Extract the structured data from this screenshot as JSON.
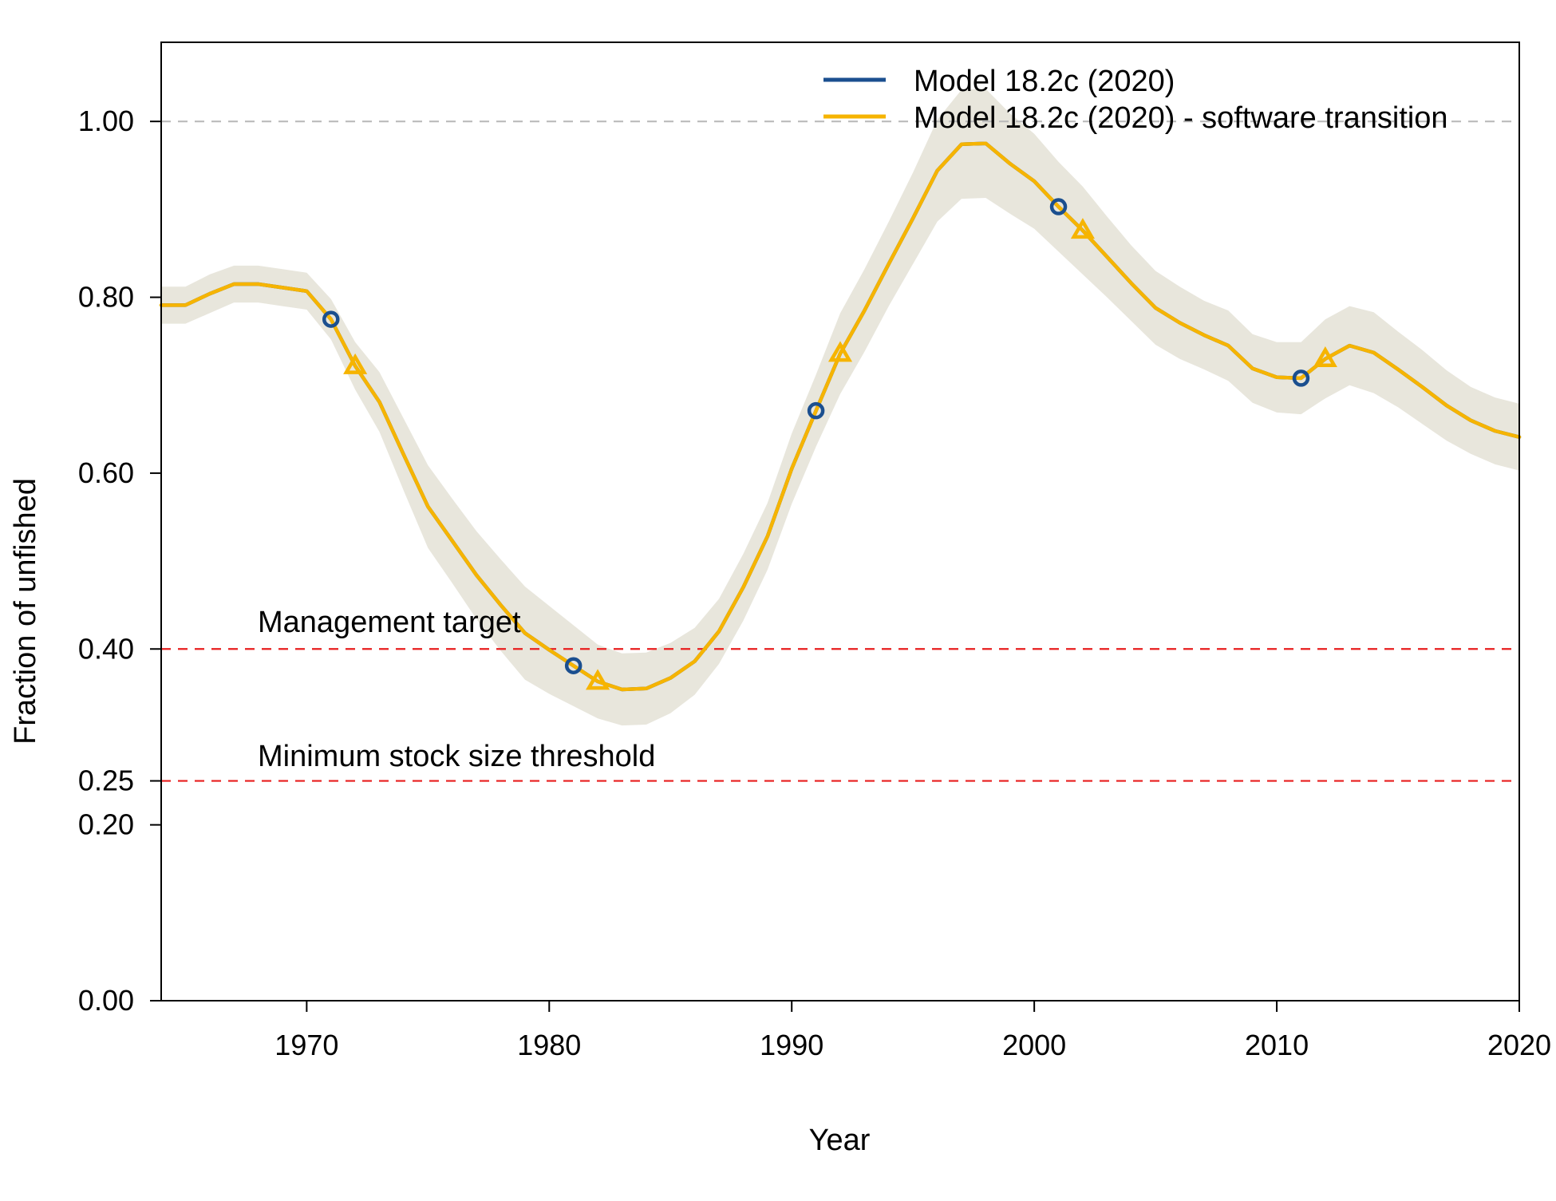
{
  "chart_data": {
    "type": "line",
    "title": "",
    "xlabel": "Year",
    "ylabel": "Fraction of unfished",
    "xlim": [
      1964,
      2020
    ],
    "ylim": [
      0,
      1.09
    ],
    "x_ticks": [
      1970,
      1980,
      1990,
      2000,
      2010,
      2020
    ],
    "x_tick_labels": [
      "1970",
      "1980",
      "1990",
      "2000",
      "2010",
      "2020"
    ],
    "y_ticks": [
      0,
      0.2,
      0.25,
      0.4,
      0.6,
      0.8,
      1.0
    ],
    "y_tick_labels": [
      "0.00",
      "0.20",
      "0.25",
      "0.40",
      "0.60",
      "0.80",
      "1.00"
    ],
    "grid": false,
    "legend_position": "top-right",
    "colors": {
      "model_a": "#1b4f8f",
      "model_b": "#f6b400",
      "ci_band": "#e8e6dc",
      "ref_line": "#e81e1e",
      "unfished_line": "#bbbbbb"
    },
    "reference_lines": [
      {
        "y": 1.0,
        "label": "",
        "color": "#bbbbbb"
      },
      {
        "y": 0.4,
        "label": "Management target",
        "color": "#e81e1e"
      },
      {
        "y": 0.25,
        "label": "Minimum stock size threshold",
        "color": "#e81e1e"
      }
    ],
    "x": [
      1964,
      1965,
      1966,
      1967,
      1968,
      1969,
      1970,
      1971,
      1972,
      1973,
      1974,
      1975,
      1976,
      1977,
      1978,
      1979,
      1980,
      1981,
      1982,
      1983,
      1984,
      1985,
      1986,
      1987,
      1988,
      1989,
      1990,
      1991,
      1992,
      1993,
      1994,
      1995,
      1996,
      1997,
      1998,
      1999,
      2000,
      2001,
      2002,
      2003,
      2004,
      2005,
      2006,
      2007,
      2008,
      2009,
      2010,
      2011,
      2012,
      2013,
      2014,
      2015,
      2016,
      2017,
      2018,
      2019,
      2020
    ],
    "series": [
      {
        "name": "Model 18.2c (2020)",
        "color": "#1b4f8f",
        "marker": "circle",
        "values": [
          0.791,
          0.791,
          0.804,
          0.815,
          0.815,
          0.811,
          0.807,
          0.775,
          0.722,
          0.681,
          0.621,
          0.562,
          0.523,
          0.484,
          0.45,
          0.418,
          0.399,
          0.381,
          0.363,
          0.354,
          0.355,
          0.367,
          0.386,
          0.42,
          0.47,
          0.528,
          0.605,
          0.671,
          0.736,
          0.785,
          0.838,
          0.89,
          0.944,
          0.974,
          0.975,
          0.952,
          0.932,
          0.903,
          0.876,
          0.846,
          0.816,
          0.788,
          0.771,
          0.757,
          0.745,
          0.719,
          0.709,
          0.708,
          0.73,
          0.745,
          0.737,
          0.718,
          0.698,
          0.677,
          0.66,
          0.648,
          0.641
        ],
        "marker_years": [
          1971,
          1981,
          1991,
          2001,
          2011
        ]
      },
      {
        "name": "Model 18.2c (2020) - software transition",
        "color": "#f6b400",
        "marker": "triangle",
        "values": [
          0.791,
          0.791,
          0.804,
          0.815,
          0.815,
          0.811,
          0.807,
          0.775,
          0.722,
          0.681,
          0.621,
          0.562,
          0.523,
          0.484,
          0.45,
          0.418,
          0.399,
          0.381,
          0.363,
          0.354,
          0.355,
          0.367,
          0.386,
          0.42,
          0.47,
          0.528,
          0.605,
          0.671,
          0.736,
          0.785,
          0.838,
          0.89,
          0.944,
          0.974,
          0.975,
          0.952,
          0.932,
          0.903,
          0.876,
          0.846,
          0.816,
          0.788,
          0.771,
          0.757,
          0.745,
          0.719,
          0.709,
          0.708,
          0.73,
          0.745,
          0.737,
          0.718,
          0.698,
          0.677,
          0.66,
          0.648,
          0.641
        ],
        "marker_years": [
          1972,
          1982,
          1992,
          2002,
          2012
        ]
      }
    ],
    "confidence_interval": {
      "lower": [
        0.77,
        0.77,
        0.782,
        0.794,
        0.794,
        0.79,
        0.786,
        0.752,
        0.695,
        0.647,
        0.58,
        0.515,
        0.475,
        0.434,
        0.398,
        0.365,
        0.349,
        0.335,
        0.321,
        0.313,
        0.314,
        0.327,
        0.348,
        0.383,
        0.432,
        0.49,
        0.565,
        0.63,
        0.69,
        0.738,
        0.79,
        0.838,
        0.886,
        0.912,
        0.913,
        0.895,
        0.878,
        0.852,
        0.826,
        0.8,
        0.773,
        0.746,
        0.73,
        0.718,
        0.705,
        0.68,
        0.669,
        0.667,
        0.685,
        0.7,
        0.691,
        0.675,
        0.656,
        0.637,
        0.622,
        0.61,
        0.603
      ],
      "upper": [
        0.812,
        0.812,
        0.826,
        0.836,
        0.836,
        0.832,
        0.828,
        0.798,
        0.749,
        0.715,
        0.662,
        0.609,
        0.571,
        0.534,
        0.502,
        0.471,
        0.449,
        0.427,
        0.405,
        0.395,
        0.396,
        0.407,
        0.424,
        0.457,
        0.508,
        0.566,
        0.645,
        0.712,
        0.782,
        0.832,
        0.886,
        0.942,
        1.002,
        1.036,
        1.037,
        1.009,
        0.986,
        0.954,
        0.926,
        0.892,
        0.859,
        0.83,
        0.812,
        0.796,
        0.785,
        0.758,
        0.749,
        0.749,
        0.775,
        0.79,
        0.783,
        0.761,
        0.74,
        0.717,
        0.698,
        0.686,
        0.679
      ]
    }
  }
}
